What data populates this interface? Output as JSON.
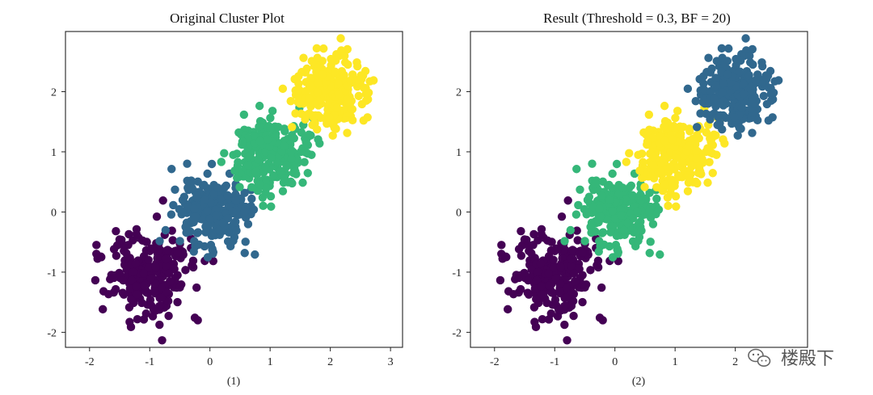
{
  "chart_data": [
    {
      "type": "scatter",
      "title": "Original Cluster Plot",
      "caption": "(1)",
      "xlabel": "",
      "ylabel": "",
      "xlim": [
        -2.4,
        3.2
      ],
      "ylim": [
        -2.25,
        3.0
      ],
      "xticks": [
        -2,
        -1,
        0,
        1,
        2,
        3
      ],
      "yticks": [
        -2,
        -1,
        0,
        1,
        2
      ],
      "grid": false,
      "legend": "none",
      "series": [
        {
          "name": "cluster-0",
          "color": "#440154",
          "center": [
            -1.0,
            -1.0
          ],
          "spread": 0.35,
          "count": 250
        },
        {
          "name": "cluster-1",
          "color": "#31688e",
          "center": [
            0.0,
            0.0
          ],
          "spread": 0.3,
          "count": 250
        },
        {
          "name": "cluster-2",
          "color": "#35b779",
          "center": [
            1.0,
            1.0
          ],
          "spread": 0.33,
          "count": 250
        },
        {
          "name": "cluster-3",
          "color": "#fde725",
          "center": [
            2.0,
            2.0
          ],
          "spread": 0.3,
          "count": 250
        }
      ]
    },
    {
      "type": "scatter",
      "title": "Result (Threshold = 0.3, BF = 20)",
      "caption": "(2)",
      "xlabel": "",
      "ylabel": "",
      "xlim": [
        -2.4,
        3.2
      ],
      "ylim": [
        -2.25,
        3.0
      ],
      "xticks": [
        -2,
        -1,
        0,
        1,
        2
      ],
      "yticks": [
        -2,
        -1,
        0,
        1,
        2
      ],
      "grid": false,
      "legend": "none",
      "series": [
        {
          "name": "cluster-0",
          "color": "#440154",
          "center": [
            -1.0,
            -1.0
          ],
          "spread": 0.35,
          "count": 250
        },
        {
          "name": "cluster-1",
          "color": "#35b779",
          "center": [
            0.0,
            0.0
          ],
          "spread": 0.3,
          "count": 250
        },
        {
          "name": "cluster-2",
          "color": "#fde725",
          "center": [
            1.0,
            1.0
          ],
          "spread": 0.33,
          "count": 250
        },
        {
          "name": "cluster-3",
          "color": "#31688e",
          "center": [
            2.0,
            2.0
          ],
          "spread": 0.3,
          "count": 250
        }
      ]
    }
  ],
  "watermark": {
    "text": "楼殿下",
    "icon": "wechat-icon"
  }
}
